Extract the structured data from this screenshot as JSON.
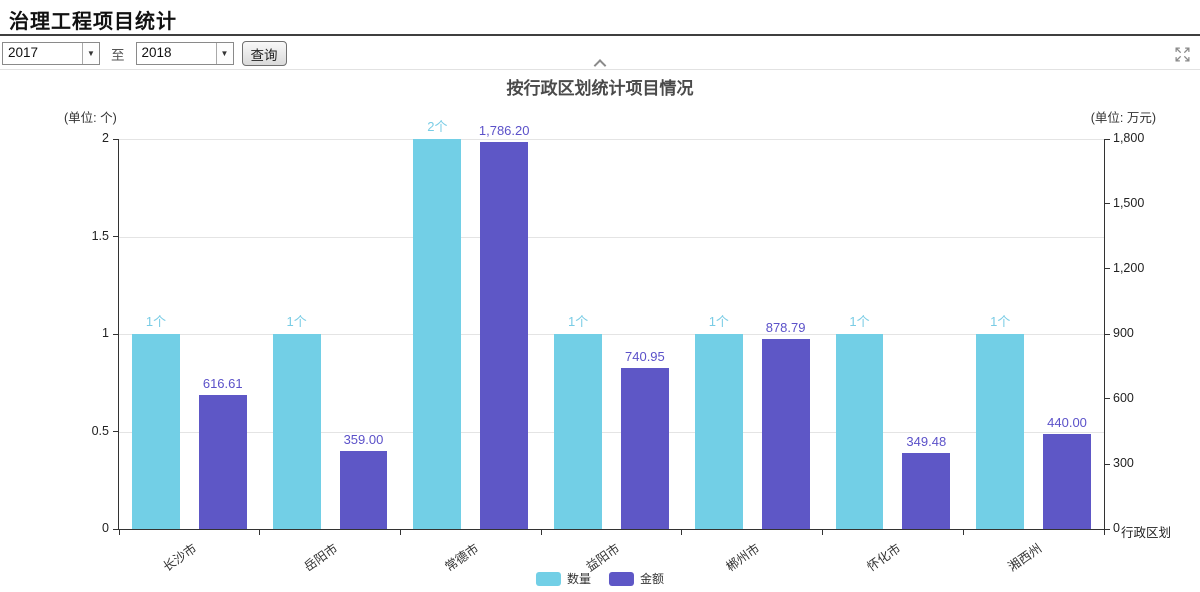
{
  "page": {
    "title": "治理工程项目统计"
  },
  "toolbar": {
    "year_from": "2017",
    "to_label": "至",
    "year_to": "2018",
    "query_label": "查询"
  },
  "chart_data": {
    "type": "bar",
    "title": "按行政区划统计项目情况",
    "left_unit": "(单位: 个)",
    "right_unit": "(单位: 万元)",
    "x_axis_name": "行政区划",
    "categories": [
      "长沙市",
      "岳阳市",
      "常德市",
      "益阳市",
      "郴州市",
      "怀化市",
      "湘西州"
    ],
    "series": [
      {
        "name": "数量",
        "axis": "left",
        "color": "#72CFE6",
        "label_color": "#79CCE5",
        "values": [
          1,
          1,
          2,
          1,
          1,
          1,
          1
        ],
        "labels": [
          "1个",
          "1个",
          "2个",
          "1个",
          "1个",
          "1个",
          "1个"
        ]
      },
      {
        "name": "金额",
        "axis": "right",
        "color": "#5E57C6",
        "label_color": "#5B51C9",
        "values": [
          616.61,
          359.0,
          1786.2,
          740.95,
          878.79,
          349.48,
          440.0
        ],
        "labels": [
          "616.61",
          "359.00",
          "1,786.20",
          "740.95",
          "878.79",
          "349.48",
          "440.00"
        ]
      }
    ],
    "left_axis": {
      "max": 2,
      "ticks": [
        "2",
        "1.5",
        "1",
        "0.5",
        "0"
      ]
    },
    "right_axis": {
      "max": 1800,
      "ticks": [
        "1,800",
        "1,500",
        "1,200",
        "900",
        "600",
        "300",
        "0"
      ]
    },
    "legend": [
      "数量",
      "金额"
    ],
    "legend_position": "bottom",
    "grid": true
  }
}
